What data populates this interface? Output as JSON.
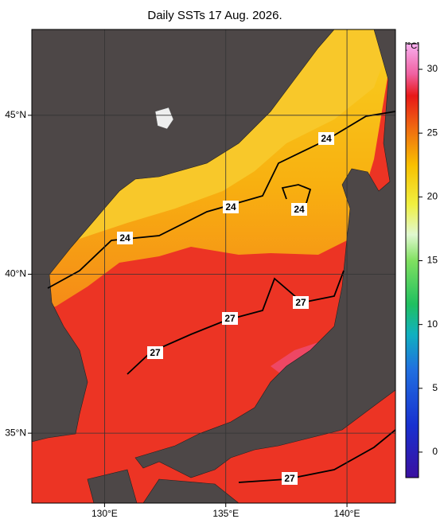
{
  "title": "Daily SSTs 17 Aug. 2026.",
  "map": {
    "xlim": [
      127,
      142
    ],
    "ylim": [
      32.8,
      47.7
    ],
    "xticks": [
      {
        "value": 130,
        "label": "130°E"
      },
      {
        "value": 135,
        "label": "135°E"
      },
      {
        "value": 140,
        "label": "140°E"
      }
    ],
    "yticks": [
      {
        "value": 35,
        "label": "35°N"
      },
      {
        "value": 40,
        "label": "40°N"
      },
      {
        "value": 45,
        "label": "45°N"
      }
    ],
    "contour_labels": [
      "24",
      "24",
      "24",
      "24",
      "27",
      "27",
      "27",
      "27"
    ]
  },
  "colorbar": {
    "unit": "[°C]",
    "lim": [
      -2,
      32
    ],
    "ticks": [
      0,
      5,
      10,
      15,
      20,
      25,
      30
    ]
  }
}
